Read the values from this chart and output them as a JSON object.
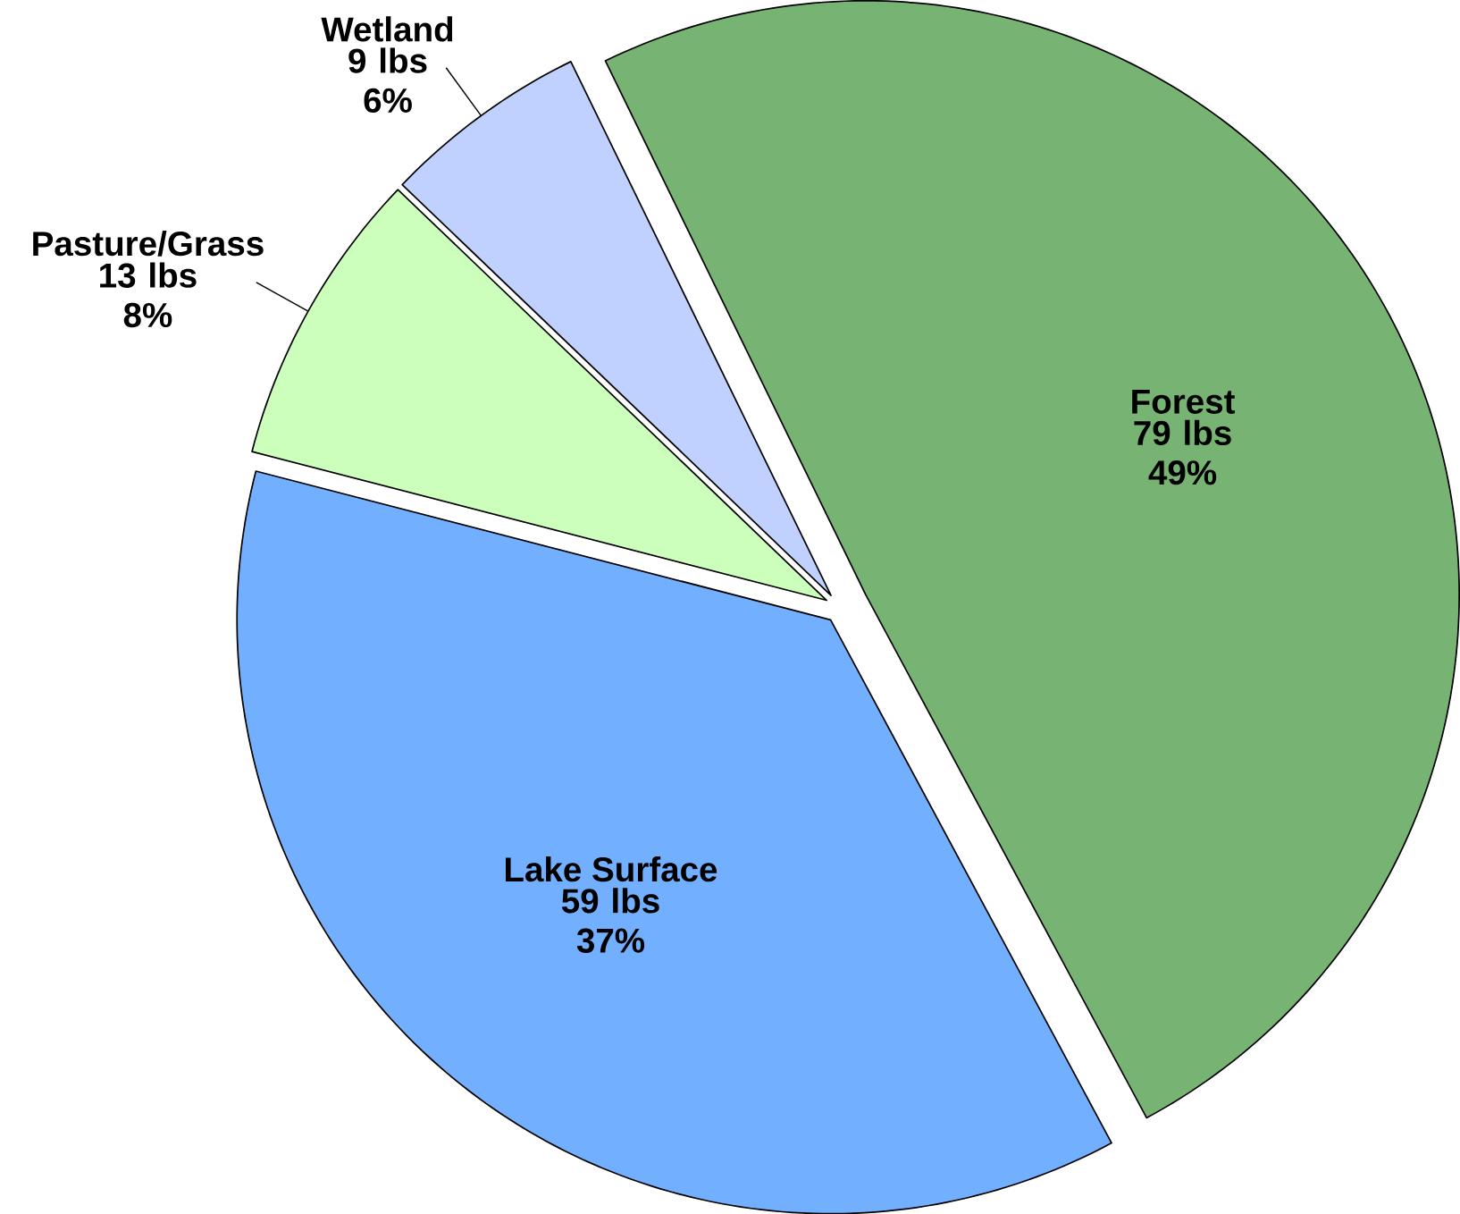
{
  "chart_data": {
    "type": "pie",
    "categories": [
      "Forest",
      "Lake Surface",
      "Pasture/Grass",
      "Wetland"
    ],
    "values": [
      79,
      59,
      13,
      9
    ],
    "value_labels": [
      "79 lbs 49%",
      "59 lbs 37%",
      "13 lbs 8%",
      "9 lbs 6%"
    ],
    "colors": [
      "#77b473",
      "#72b0ff",
      "#ccffbb",
      "#c0d0ff"
    ]
  }
}
